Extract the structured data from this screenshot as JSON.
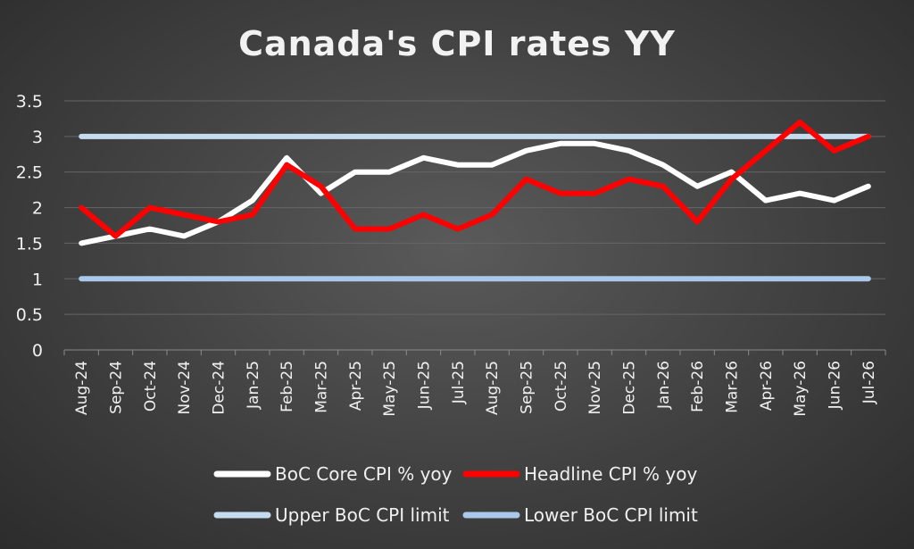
{
  "chart_data": {
    "type": "line",
    "title": "Canada's CPI rates YY",
    "xlabel": "",
    "ylabel": "",
    "ylim": [
      0,
      3.5
    ],
    "yticks": [
      "0",
      "0.5",
      "1",
      "1.5",
      "2",
      "2.5",
      "3",
      "3.5"
    ],
    "categories": [
      "Aug-24",
      "Sep-24",
      "Oct-24",
      "Nov-24",
      "Dec-24",
      "Jan-25",
      "Feb-25",
      "Mar-25",
      "Apr-25",
      "May-25",
      "Jun-25",
      "Jul-25",
      "Aug-25",
      "Sep-25",
      "Oct-25",
      "Nov-25",
      "Dec-25",
      "Jan-26",
      "Feb-26",
      "Mar-26",
      "Apr-26",
      "May-26",
      "Jun-26",
      "Jul-26"
    ],
    "grid": true,
    "legend_position": "bottom",
    "series": [
      {
        "name": "BoC Core CPI % yoy",
        "color": "#ffffff",
        "values": [
          1.5,
          1.6,
          1.7,
          1.6,
          1.8,
          2.1,
          2.7,
          2.2,
          2.5,
          2.5,
          2.7,
          2.6,
          2.6,
          2.8,
          2.9,
          2.9,
          2.8,
          2.6,
          2.3,
          2.5,
          2.1,
          2.2,
          2.1,
          2.3
        ]
      },
      {
        "name": "Headline CPI % yoy",
        "color": "#ff0000",
        "values": [
          2.0,
          1.6,
          2.0,
          1.9,
          1.8,
          1.9,
          2.6,
          2.3,
          1.7,
          1.7,
          1.9,
          1.7,
          1.9,
          2.4,
          2.2,
          2.2,
          2.4,
          2.3,
          1.8,
          2.4,
          2.8,
          3.2,
          2.8,
          3.0
        ]
      },
      {
        "name": "Upper BoC CPI limit",
        "color": "#c5dcf0",
        "values": [
          3,
          3,
          3,
          3,
          3,
          3,
          3,
          3,
          3,
          3,
          3,
          3,
          3,
          3,
          3,
          3,
          3,
          3,
          3,
          3,
          3,
          3,
          3,
          3
        ]
      },
      {
        "name": "Lower BoC CPI limit",
        "color": "#a9c8ea",
        "values": [
          1,
          1,
          1,
          1,
          1,
          1,
          1,
          1,
          1,
          1,
          1,
          1,
          1,
          1,
          1,
          1,
          1,
          1,
          1,
          1,
          1,
          1,
          1,
          1
        ]
      }
    ]
  }
}
